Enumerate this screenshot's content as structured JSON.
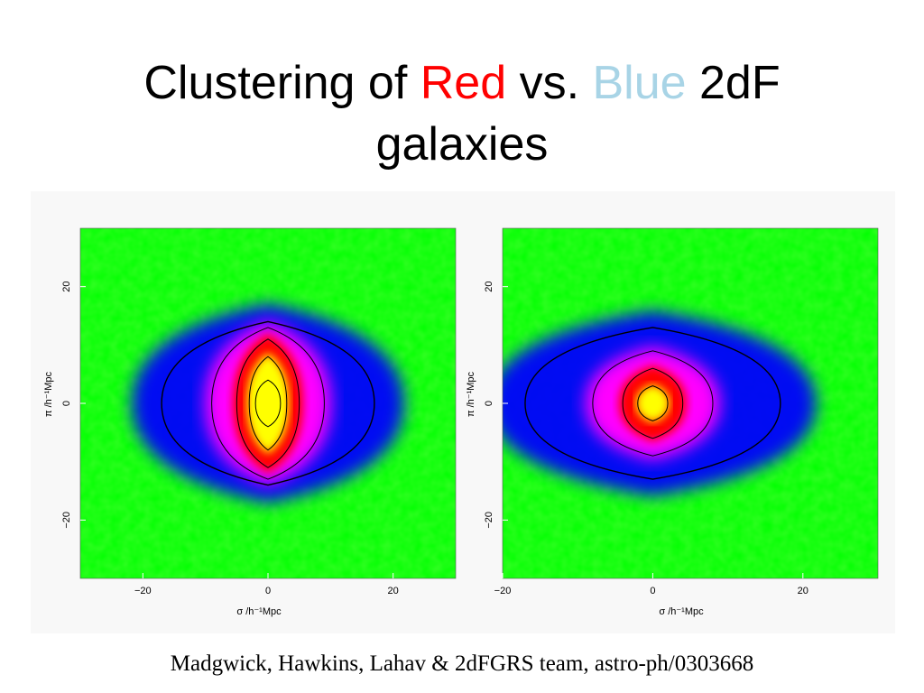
{
  "slide": {
    "title_parts": [
      {
        "text": "Clustering of ",
        "color": "#000000"
      },
      {
        "text": "Red",
        "color": "#ff0000"
      },
      {
        "text": " vs. ",
        "color": "#000000"
      },
      {
        "text": "Blue",
        "color": "#a8d4e6"
      },
      {
        "text": " 2dF",
        "color": "#000000"
      }
    ],
    "title_line2": "galaxies",
    "citation": "Madgwick, Hawkins, Lahav & 2dFGRS team, astro-ph/0303668"
  },
  "colormap": [
    "#00ff00",
    "#0000ff",
    "#ff00ff",
    "#ff0000",
    "#ffff00"
  ],
  "chart_data": [
    {
      "type": "heatmap",
      "xlabel": "σ   /h⁻¹Mpc",
      "ylabel": "π   /h⁻¹Mpc",
      "xlim": [
        -30,
        30
      ],
      "ylim": [
        -30,
        30
      ],
      "xticks": [
        -20,
        0,
        20
      ],
      "yticks": [
        -20,
        0,
        20
      ],
      "xticklabels": [
        "−20",
        "0",
        "20"
      ],
      "yticklabels": [
        "−20",
        "0",
        "20"
      ],
      "contours": [
        {
          "level": 1,
          "sigma_extent": 17,
          "pi_extent": 14
        },
        {
          "level": 2,
          "sigma_extent": 9,
          "pi_extent": 13
        },
        {
          "level": 3,
          "sigma_extent": 5,
          "pi_extent": 11
        },
        {
          "level": 4,
          "sigma_extent": 3,
          "pi_extent": 8
        },
        {
          "level": 5,
          "sigma_extent": 2,
          "pi_extent": 4
        }
      ]
    },
    {
      "type": "heatmap",
      "xlabel": "σ   /h⁻¹Mpc",
      "ylabel": "π   /h⁻¹Mpc",
      "xlim": [
        -20,
        30
      ],
      "ylim": [
        -30,
        30
      ],
      "xticks": [
        -20,
        0,
        20
      ],
      "yticks": [
        -20,
        0,
        20
      ],
      "xticklabels": [
        "−20",
        "0",
        "20"
      ],
      "yticklabels": [
        "−20",
        "0",
        "20"
      ],
      "contours": [
        {
          "level": 1,
          "sigma_extent": 17,
          "pi_extent": 13
        },
        {
          "level": 2,
          "sigma_extent": 8,
          "pi_extent": 9
        },
        {
          "level": 3,
          "sigma_extent": 4,
          "pi_extent": 6
        },
        {
          "level": 4,
          "sigma_extent": 2,
          "pi_extent": 3
        }
      ]
    }
  ]
}
